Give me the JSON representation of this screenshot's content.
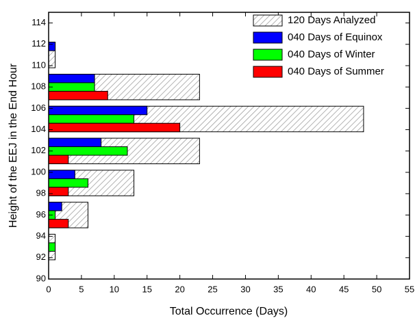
{
  "chart_data": {
    "type": "hbar_group",
    "x_label": "Total Occurrence (Days)",
    "y_label": "Height of the EEJ in the End Hour",
    "y": [
      111,
      108,
      105,
      102,
      99,
      96,
      93
    ],
    "series": [
      {
        "name": "120 Days Analyzed",
        "color": "#dcdcdc",
        "hatch": true,
        "values": [
          1,
          23,
          48,
          23,
          13,
          6,
          1
        ]
      },
      {
        "name": "040 Days of Equinox",
        "color": "#0000ff",
        "values": [
          1,
          7,
          15,
          8,
          4,
          2,
          0
        ]
      },
      {
        "name": "040 Days of Winter",
        "color": "#00ff00",
        "values": [
          0,
          7,
          13,
          12,
          6,
          1,
          1
        ]
      },
      {
        "name": "040 Days of Summer",
        "color": "#ff0000",
        "values": [
          0,
          9,
          20,
          3,
          3,
          3,
          0
        ]
      }
    ],
    "xlim": [
      0,
      55
    ],
    "xticks": [
      0,
      5,
      10,
      15,
      20,
      25,
      30,
      35,
      40,
      45,
      50,
      55
    ],
    "ylim": [
      90,
      115
    ],
    "yticks": [
      90,
      92,
      94,
      96,
      98,
      100,
      102,
      104,
      106,
      108,
      110,
      112,
      114
    ],
    "legend": "upper right"
  }
}
